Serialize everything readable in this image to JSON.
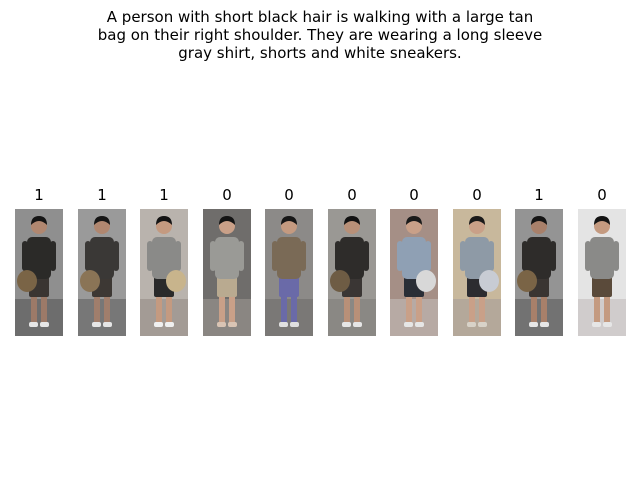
{
  "caption": "A person with short black hair is walking with a large tan\nbag on their right shoulder. They are wearing a long sleeve\ngray shirt, shorts and white sneakers.",
  "gallery": [
    {
      "label": "1",
      "bg": "#8f8f8f",
      "ground": "#6d6d6d",
      "hair": "#141414",
      "skin": "#b08770",
      "shirt": "#2b2a28",
      "bottom": "#3a3532",
      "legs": "#9c7a68",
      "shoes": "#e6e6e6",
      "bag": "#7a6446",
      "bag_side": "left"
    },
    {
      "label": "1",
      "bg": "#9a9a9a",
      "ground": "#777777",
      "hair": "#161616",
      "skin": "#b08770",
      "shirt": "#3a3836",
      "bottom": "#3d3834",
      "legs": "#a07e6c",
      "shoes": "#e6e6e6",
      "bag": "#8a7456",
      "bag_side": "left"
    },
    {
      "label": "1",
      "bg": "#b9b3ad",
      "ground": "#a39b95",
      "hair": "#141414",
      "skin": "#c49a80",
      "shirt": "#8a8a88",
      "bottom": "#2a2a2a",
      "legs": "#c49a80",
      "shoes": "#f0f0f0",
      "bag": "#c8b48c",
      "bag_side": "right"
    },
    {
      "label": "0",
      "bg": "#6f6d6b",
      "ground": "#8a8682",
      "hair": "#141414",
      "skin": "#c9a088",
      "shirt": "#9a9a96",
      "bottom": "#b9aa90",
      "legs": "#c9a088",
      "shoes": "#d9c4b4",
      "bag": "",
      "bag_side": ""
    },
    {
      "label": "0",
      "bg": "#8c8a88",
      "ground": "#7a7876",
      "hair": "#161616",
      "skin": "#c49a80",
      "shirt": "#7a6a56",
      "bottom": "#6a6aa8",
      "legs": "#6a6aa8",
      "shoes": "#e0e0e0",
      "bag": "",
      "bag_side": ""
    },
    {
      "label": "0",
      "bg": "#9a9894",
      "ground": "#8a8884",
      "hair": "#121212",
      "skin": "#b89078",
      "shirt": "#2e2c2a",
      "bottom": "#3a3634",
      "legs": "#b89078",
      "shoes": "#e6e6e6",
      "bag": "#6e5c44",
      "bag_side": "left"
    },
    {
      "label": "0",
      "bg": "#a58f86",
      "ground": "#b7aaa4",
      "hair": "#1a1a1a",
      "skin": "#c9a088",
      "shirt": "#8fa0b4",
      "bottom": "#2a2e36",
      "legs": "#c9a088",
      "shoes": "#e6e6e6",
      "bag": "#d8d8d8",
      "bag_side": "right"
    },
    {
      "label": "0",
      "bg": "#c8b89c",
      "ground": "#b4a89a",
      "hair": "#1a1a1a",
      "skin": "#c9a088",
      "shirt": "#8e9aa6",
      "bottom": "#2c2c30",
      "legs": "#c9a088",
      "shoes": "#d8d2c8",
      "bag": "#c8ccd4",
      "bag_side": "right"
    },
    {
      "label": "1",
      "bg": "#949494",
      "ground": "#727272",
      "hair": "#141414",
      "skin": "#a8806a",
      "shirt": "#2e2c2a",
      "bottom": "#3a3532",
      "legs": "#a8806a",
      "shoes": "#e6e6e6",
      "bag": "#7a6446",
      "bag_side": "left"
    },
    {
      "label": "0",
      "bg": "#e4e4e4",
      "ground": "#d0cccc",
      "hair": "#141414",
      "skin": "#c49a80",
      "shirt": "#8a8a88",
      "bottom": "#5a4a3a",
      "legs": "#c49a80",
      "shoes": "#e6e6e6",
      "bag": "",
      "bag_side": ""
    }
  ]
}
